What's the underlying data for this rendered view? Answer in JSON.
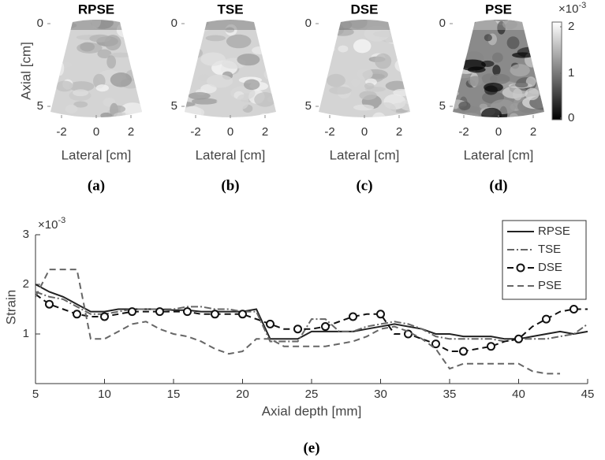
{
  "panels": [
    {
      "title": "RPSE",
      "xlabel": "Lateral [cm]",
      "ylabel": "Axial [cm]",
      "caption": "(a)"
    },
    {
      "title": "TSE",
      "xlabel": "Lateral [cm]",
      "caption": "(b)"
    },
    {
      "title": "DSE",
      "xlabel": "Lateral [cm]",
      "caption": "(c)"
    },
    {
      "title": "PSE",
      "xlabel": "Lateral [cm]",
      "caption": "(d)"
    }
  ],
  "image_axes": {
    "xticks": [
      -2,
      0,
      2
    ],
    "yticks": [
      0,
      5
    ]
  },
  "colorbar": {
    "ticks": [
      0,
      1,
      2
    ],
    "exponent_base": "×10",
    "exponent_power": "-3"
  },
  "chart_data": {
    "type": "line",
    "xlabel": "Axial depth [mm]",
    "ylabel": "Strain",
    "caption": "(e)",
    "exponent_base": "×10",
    "exponent_power": "-3",
    "xlim": [
      5,
      45
    ],
    "ylim": [
      0,
      3
    ],
    "xticks": [
      5,
      10,
      15,
      20,
      25,
      30,
      35,
      40,
      45
    ],
    "yticks": [
      1,
      2,
      3
    ],
    "legend": "upper right",
    "x": [
      5,
      6,
      7,
      8,
      9,
      10,
      11,
      12,
      13,
      14,
      15,
      16,
      17,
      18,
      19,
      20,
      21,
      22,
      23,
      24,
      25,
      26,
      27,
      28,
      29,
      30,
      31,
      32,
      33,
      34,
      35,
      36,
      37,
      38,
      39,
      40,
      41,
      42,
      43,
      44,
      45
    ],
    "series": [
      {
        "name": "RPSE",
        "color": "#222222",
        "style": "solid",
        "values": [
          2.0,
          1.85,
          1.75,
          1.6,
          1.45,
          1.45,
          1.5,
          1.5,
          1.5,
          1.5,
          1.48,
          1.48,
          1.45,
          1.45,
          1.45,
          1.45,
          1.5,
          0.9,
          0.9,
          0.9,
          1.05,
          1.05,
          1.05,
          1.05,
          1.1,
          1.15,
          1.2,
          1.15,
          1.1,
          1.0,
          1.0,
          0.95,
          0.95,
          0.95,
          0.9,
          0.9,
          0.95,
          1.0,
          1.05,
          1.0,
          1.05
        ]
      },
      {
        "name": "TSE",
        "color": "#666666",
        "style": "dashdot",
        "values": [
          1.85,
          1.75,
          1.7,
          1.55,
          1.4,
          1.4,
          1.45,
          1.5,
          1.5,
          1.5,
          1.5,
          1.55,
          1.55,
          1.5,
          1.5,
          1.45,
          1.45,
          0.85,
          0.85,
          0.85,
          1.3,
          1.3,
          1.05,
          1.05,
          1.15,
          1.2,
          1.25,
          1.2,
          1.1,
          0.95,
          0.9,
          0.9,
          0.9,
          0.9,
          0.85,
          0.9,
          0.9,
          0.9,
          0.95,
          1.0,
          1.2
        ]
      },
      {
        "name": "DSE",
        "color": "#111111",
        "style": "dashed",
        "marker": "circle",
        "values": [
          1.8,
          1.6,
          1.5,
          1.4,
          1.35,
          1.35,
          1.4,
          1.45,
          1.45,
          1.45,
          1.45,
          1.45,
          1.4,
          1.4,
          1.4,
          1.4,
          1.3,
          1.2,
          1.1,
          1.1,
          1.1,
          1.15,
          1.25,
          1.35,
          1.4,
          1.4,
          1.0,
          1.0,
          0.9,
          0.8,
          0.65,
          0.65,
          0.7,
          0.75,
          0.85,
          0.9,
          1.15,
          1.3,
          1.45,
          1.5,
          1.5
        ]
      },
      {
        "name": "PSE",
        "color": "#666666",
        "style": "dashed",
        "values": [
          1.75,
          2.3,
          2.3,
          2.3,
          0.9,
          0.9,
          1.05,
          1.2,
          1.25,
          1.1,
          1.0,
          0.95,
          0.85,
          0.7,
          0.6,
          0.65,
          0.9,
          0.9,
          0.75,
          0.75,
          0.75,
          0.75,
          0.8,
          0.85,
          0.95,
          1.1,
          1.15,
          1.05,
          0.9,
          0.7,
          0.3,
          0.4,
          0.4,
          0.4,
          0.4,
          0.4,
          0.25,
          0.2,
          0.2,
          null,
          null
        ]
      }
    ]
  }
}
